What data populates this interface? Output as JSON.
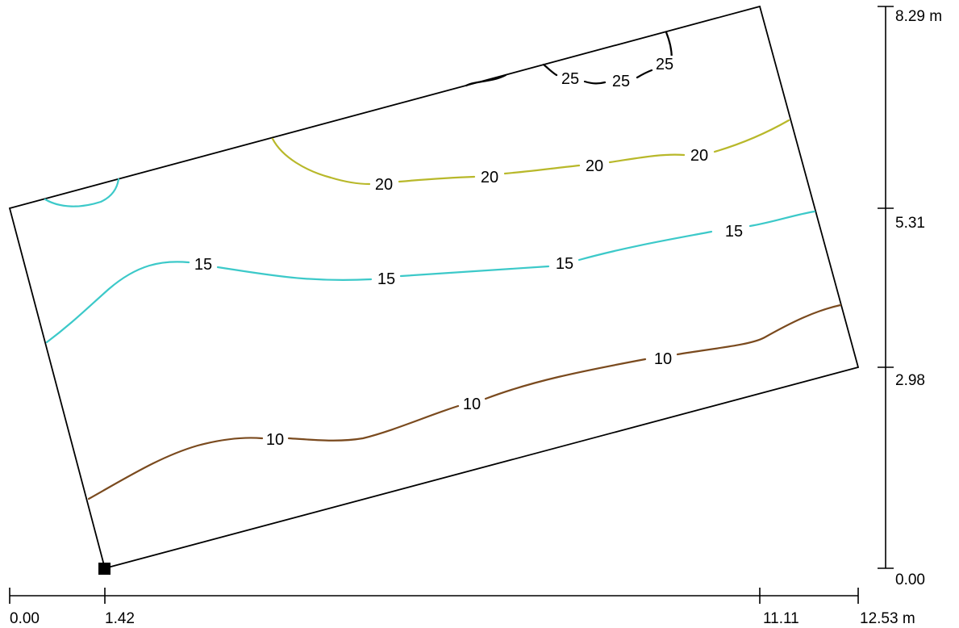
{
  "x_axis": {
    "ticks": [
      "0.00",
      "1.42",
      "11.11",
      "12.53 m"
    ]
  },
  "y_axis": {
    "ticks": [
      "0.00",
      "2.98",
      "5.31",
      "8.29 m"
    ]
  },
  "colors": {
    "level_10": "#7a4a1e",
    "level_15": "#3cc9c9",
    "level_20": "#b8b82a",
    "level_25": "#000000",
    "outline": "#000000",
    "origin_marker": "#000000"
  },
  "contour_labels": {
    "c10_a": "10",
    "c10_b": "10",
    "c10_c": "10",
    "c15_a": "15",
    "c15_b": "15",
    "c15_c": "15",
    "c15_d": "15",
    "c20_a": "20",
    "c20_b": "20",
    "c20_c": "20",
    "c20_d": "20",
    "c25_a": "25",
    "c25_b": "25",
    "c25_c": "25"
  }
}
